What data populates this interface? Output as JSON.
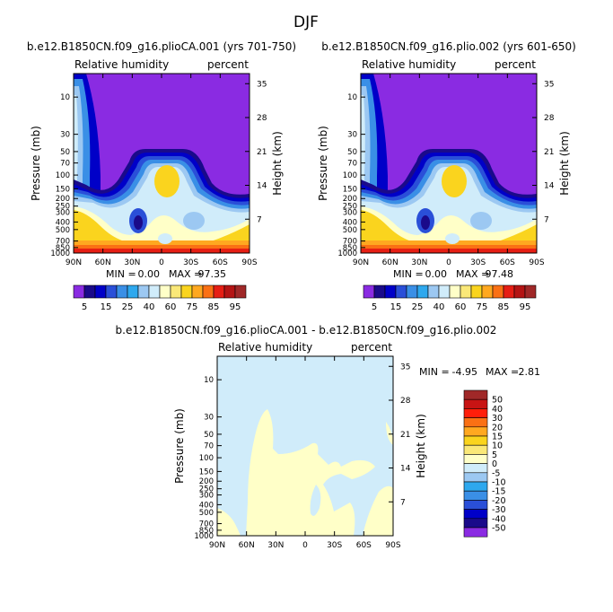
{
  "figure_title": "DJF",
  "colors": {
    "abs_levels": [
      "#8a2be2",
      "#1a0a8a",
      "#0000c8",
      "#2a4fd8",
      "#3a8fe6",
      "#2ea8ee",
      "#9cc8f2",
      "#d0ecfa",
      "#ffffc8",
      "#fae878",
      "#fad41e",
      "#ffa820",
      "#fa7014",
      "#e61e14",
      "#b41414",
      "#a02828",
      "#f062a8"
    ],
    "diff_levels": [
      "#8a2be2",
      "#1a0a8a",
      "#0000c8",
      "#2a4fd8",
      "#3a8fe6",
      "#2ea8ee",
      "#9cc8f2",
      "#d0ecfa",
      "#ffffc8",
      "#fae878",
      "#fad41e",
      "#ffa820",
      "#fa7014",
      "#ff1e0a",
      "#c81414",
      "#a02828",
      "#f062a8"
    ]
  },
  "chart_data": [
    {
      "type": "contour",
      "title": "b.e12.B1850CN.f09_g16.plioCA.001 (yrs 701-750)",
      "left_label": "Relative humidity",
      "right_label": "percent",
      "ylabel": "Pressure (mb)",
      "ylabel_right": "Height (km)",
      "xticks": [
        "90N",
        "60N",
        "30N",
        "0",
        "30S",
        "60S",
        "90S"
      ],
      "yticks": [
        "10",
        "30",
        "50",
        "70",
        "100",
        "150",
        "200",
        "250",
        "300",
        "400",
        "500",
        "700",
        "850",
        "1000"
      ],
      "height_ticks": [
        "35",
        "28",
        "21",
        "14",
        "7"
      ],
      "min_label": "MIN =",
      "min": "0.00",
      "max_label": "MAX =",
      "max": "97.35",
      "colorbar_labels": [
        "5",
        "15",
        "25",
        "40",
        "60",
        "75",
        "85",
        "95"
      ]
    },
    {
      "type": "contour",
      "title": "b.e12.B1850CN.f09_g16.plio.002 (yrs 601-650)",
      "left_label": "Relative humidity",
      "right_label": "percent",
      "ylabel": "Pressure (mb)",
      "ylabel_right": "Height (km)",
      "xticks": [
        "90N",
        "60N",
        "30N",
        "0",
        "30S",
        "60S",
        "90S"
      ],
      "yticks": [
        "10",
        "30",
        "50",
        "70",
        "100",
        "150",
        "200",
        "250",
        "300",
        "400",
        "500",
        "700",
        "850",
        "1000"
      ],
      "height_ticks": [
        "35",
        "28",
        "21",
        "14",
        "7"
      ],
      "min_label": "MIN =",
      "min": "0.00",
      "max_label": "MAX =",
      "max": "97.48",
      "colorbar_labels": [
        "5",
        "15",
        "25",
        "40",
        "60",
        "75",
        "85",
        "95"
      ]
    },
    {
      "type": "contour",
      "title": "b.e12.B1850CN.f09_g16.plioCA.001 - b.e12.B1850CN.f09_g16.plio.002",
      "left_label": "Relative humidity",
      "right_label": "percent",
      "ylabel": "Pressure (mb)",
      "ylabel_right": "Height (km)",
      "xticks": [
        "90N",
        "60N",
        "30N",
        "0",
        "30S",
        "60S",
        "90S"
      ],
      "yticks": [
        "10",
        "30",
        "50",
        "70",
        "100",
        "150",
        "200",
        "250",
        "300",
        "400",
        "500",
        "700",
        "850",
        "1000"
      ],
      "height_ticks": [
        "35",
        "28",
        "21",
        "14",
        "7"
      ],
      "min_label": "MIN =",
      "min": "-4.95",
      "max_label": "MAX =",
      "max": "2.81",
      "colorbar_labels": [
        "50",
        "40",
        "30",
        "20",
        "15",
        "10",
        "5",
        "0",
        "-5",
        "-10",
        "-15",
        "-20",
        "-30",
        "-40",
        "-50"
      ]
    }
  ]
}
